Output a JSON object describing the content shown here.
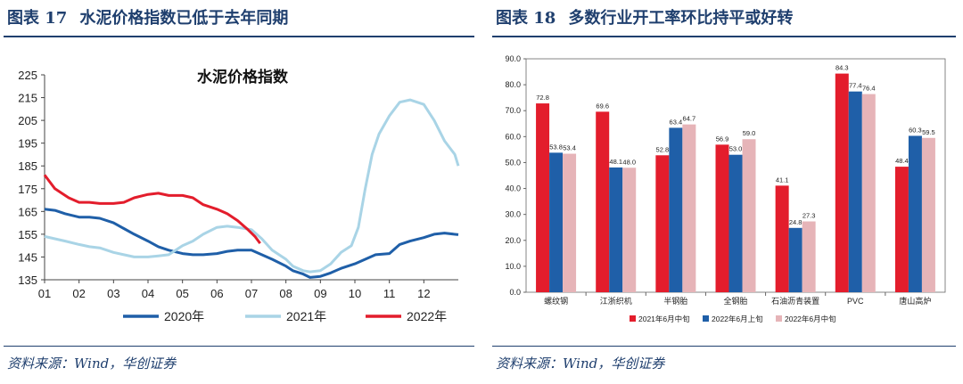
{
  "left": {
    "fig_label": "图表 17",
    "fig_caption": "水泥价格指数已低于去年同期",
    "source": "资料来源：Wind，华创证券",
    "chart_data": {
      "type": "line",
      "title": "水泥价格指数",
      "x_ticks": [
        "01",
        "02",
        "03",
        "04",
        "05",
        "06",
        "07",
        "08",
        "09",
        "10",
        "11",
        "12"
      ],
      "ylim": [
        135,
        225
      ],
      "y_ticks": [
        135,
        145,
        155,
        165,
        175,
        185,
        195,
        205,
        215,
        225
      ],
      "x_unit": "month",
      "grid": false,
      "legend_position": "bottom",
      "series": [
        {
          "name": "2020年",
          "color": "#1f5fa8",
          "x": [
            0,
            0.3,
            0.6,
            1,
            1.3,
            1.6,
            2,
            2.3,
            2.6,
            3,
            3.3,
            3.6,
            4,
            4.3,
            4.6,
            5,
            5.3,
            5.6,
            6,
            6.3,
            6.6,
            7,
            7.2,
            7.5,
            7.7,
            8,
            8.3,
            8.6,
            9,
            9.3,
            9.6,
            10,
            10.3,
            10.6,
            11,
            11.3,
            11.6,
            12
          ],
          "y": [
            166,
            165.5,
            164,
            162.5,
            162.5,
            162,
            160,
            157.5,
            155,
            152,
            149.5,
            148,
            146.5,
            146,
            146,
            146.5,
            147.5,
            148,
            148,
            146,
            144,
            141,
            139,
            137.5,
            136,
            136.5,
            138,
            140,
            142,
            144,
            146,
            146.5,
            150.5,
            152,
            153.5,
            155,
            155.5,
            154.8
          ]
        },
        {
          "name": "2021年",
          "color": "#a9d4e6",
          "x": [
            0,
            0.3,
            0.6,
            1,
            1.3,
            1.6,
            2,
            2.3,
            2.6,
            3,
            3.3,
            3.6,
            4,
            4.3,
            4.6,
            5,
            5.3,
            5.6,
            6,
            6.3,
            6.6,
            7,
            7.2,
            7.5,
            7.7,
            8,
            8.3,
            8.6,
            8.9,
            9.1,
            9.3,
            9.5,
            9.7,
            10,
            10.3,
            10.6,
            11,
            11.3,
            11.6,
            11.9,
            12
          ],
          "y": [
            154,
            153,
            152,
            150.5,
            149.5,
            149,
            147,
            146,
            145,
            145,
            145.5,
            146,
            150,
            152,
            155,
            158,
            158.5,
            158,
            157,
            153,
            148,
            144,
            141,
            139,
            138.5,
            139,
            142,
            147,
            150,
            158,
            175,
            190,
            199,
            207,
            213,
            214,
            212,
            205,
            196,
            190,
            185
          ]
        },
        {
          "name": "2022年",
          "color": "#e31d2c",
          "x": [
            0,
            0.15,
            0.3,
            0.5,
            0.7,
            1,
            1.3,
            1.6,
            2,
            2.3,
            2.6,
            3,
            3.3,
            3.6,
            4,
            4.3,
            4.6,
            5,
            5.3,
            5.6,
            5.9,
            6.1,
            6.25
          ],
          "y": [
            181,
            178,
            175,
            173,
            171,
            169,
            169,
            168.5,
            168.5,
            169,
            171,
            172.5,
            173,
            172,
            172,
            171,
            168,
            166,
            164,
            161,
            157,
            154,
            151
          ]
        }
      ]
    }
  },
  "right": {
    "fig_label": "图表 18",
    "fig_caption": "多数行业开工率环比持平或好转",
    "source": "资料来源：Wind，华创证券",
    "chart_data": {
      "type": "bar",
      "categories": [
        "螺纹钢",
        "江浙织机",
        "半钢胎",
        "全钢胎",
        "石油沥青装置",
        "PVC",
        "唐山高炉"
      ],
      "ylim": [
        0,
        90
      ],
      "y_ticks": [
        "0.0",
        "10.0",
        "20.0",
        "30.0",
        "40.0",
        "50.0",
        "60.0",
        "70.0",
        "80.0",
        "90.0"
      ],
      "grid": false,
      "legend_position": "bottom",
      "series": [
        {
          "name": "2021年6月中旬",
          "color": "#e31d2c",
          "values": [
            72.8,
            69.6,
            52.8,
            56.9,
            41.1,
            84.3,
            48.4
          ]
        },
        {
          "name": "2022年6月上旬",
          "color": "#1f5fa8",
          "values": [
            53.8,
            48.1,
            63.4,
            53.0,
            24.8,
            77.4,
            60.3
          ]
        },
        {
          "name": "2022年6月中旬",
          "color": "#e6b4b8",
          "values": [
            53.4,
            48.0,
            64.7,
            59.0,
            27.3,
            76.4,
            59.5
          ]
        }
      ]
    }
  }
}
